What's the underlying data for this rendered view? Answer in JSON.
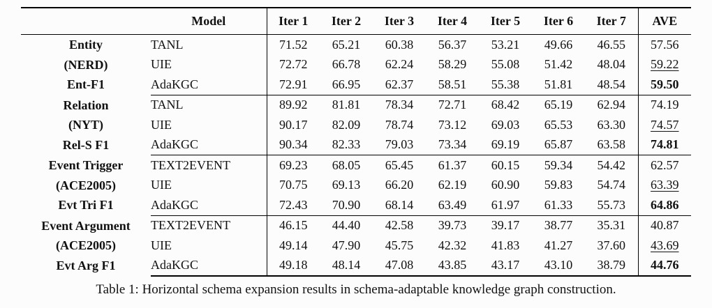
{
  "table": {
    "headers": [
      "",
      "Model",
      "Iter 1",
      "Iter 2",
      "Iter 3",
      "Iter 4",
      "Iter 5",
      "Iter 6",
      "Iter 7",
      "AVE"
    ],
    "sections": [
      {
        "task_lines": [
          "Entity",
          "(NERD)",
          "Ent-F1"
        ],
        "rows": [
          {
            "model": "TANL",
            "values": [
              "71.52",
              "65.21",
              "60.38",
              "56.37",
              "53.21",
              "49.66",
              "46.55"
            ],
            "ave": "57.56",
            "ave_style": "plain"
          },
          {
            "model": "UIE",
            "values": [
              "72.72",
              "66.78",
              "62.24",
              "58.29",
              "55.08",
              "51.42",
              "48.04"
            ],
            "ave": "59.22",
            "ave_style": "underline"
          },
          {
            "model": "AdaKGC",
            "values": [
              "72.91",
              "66.95",
              "62.37",
              "58.51",
              "55.38",
              "51.81",
              "48.54"
            ],
            "ave": "59.50",
            "ave_style": "bold"
          }
        ]
      },
      {
        "task_lines": [
          "Relation",
          "(NYT)",
          "Rel-S F1"
        ],
        "rows": [
          {
            "model": "TANL",
            "values": [
              "89.92",
              "81.81",
              "78.34",
              "72.71",
              "68.42",
              "65.19",
              "62.94"
            ],
            "ave": "74.19",
            "ave_style": "plain"
          },
          {
            "model": "UIE",
            "values": [
              "90.17",
              "82.09",
              "78.74",
              "73.12",
              "69.03",
              "65.53",
              "63.30"
            ],
            "ave": "74.57",
            "ave_style": "underline"
          },
          {
            "model": "AdaKGC",
            "values": [
              "90.34",
              "82.33",
              "79.03",
              "73.34",
              "69.19",
              "65.87",
              "63.58"
            ],
            "ave": "74.81",
            "ave_style": "bold"
          }
        ]
      },
      {
        "task_lines": [
          "Event Trigger",
          "(ACE2005)",
          "Evt Tri F1"
        ],
        "rows": [
          {
            "model": "TEXT2EVENT",
            "values": [
              "69.23",
              "68.05",
              "65.45",
              "61.37",
              "60.15",
              "59.34",
              "54.42"
            ],
            "ave": "62.57",
            "ave_style": "plain"
          },
          {
            "model": "UIE",
            "values": [
              "70.75",
              "69.13",
              "66.20",
              "62.19",
              "60.90",
              "59.83",
              "54.74"
            ],
            "ave": "63.39",
            "ave_style": "underline"
          },
          {
            "model": "AdaKGC",
            "values": [
              "72.43",
              "70.90",
              "68.14",
              "63.49",
              "61.97",
              "61.33",
              "55.73"
            ],
            "ave": "64.86",
            "ave_style": "bold"
          }
        ]
      },
      {
        "task_lines": [
          "Event Argument",
          "(ACE2005)",
          "Evt Arg F1"
        ],
        "rows": [
          {
            "model": "TEXT2EVENT",
            "values": [
              "46.15",
              "44.40",
              "42.58",
              "39.73",
              "39.17",
              "38.77",
              "35.31"
            ],
            "ave": "40.87",
            "ave_style": "plain"
          },
          {
            "model": "UIE",
            "values": [
              "49.14",
              "47.90",
              "45.75",
              "42.32",
              "41.83",
              "41.27",
              "37.60"
            ],
            "ave": "43.69",
            "ave_style": "underline"
          },
          {
            "model": "AdaKGC",
            "values": [
              "49.18",
              "48.14",
              "47.08",
              "43.85",
              "43.17",
              "43.10",
              "38.79"
            ],
            "ave": "44.76",
            "ave_style": "bold"
          }
        ]
      }
    ]
  },
  "caption": "Table 1: Horizontal schema expansion results in schema-adaptable knowledge graph construction.",
  "colors": {
    "text": "#111111",
    "border": "#000000",
    "background": "#fcfcfc"
  }
}
